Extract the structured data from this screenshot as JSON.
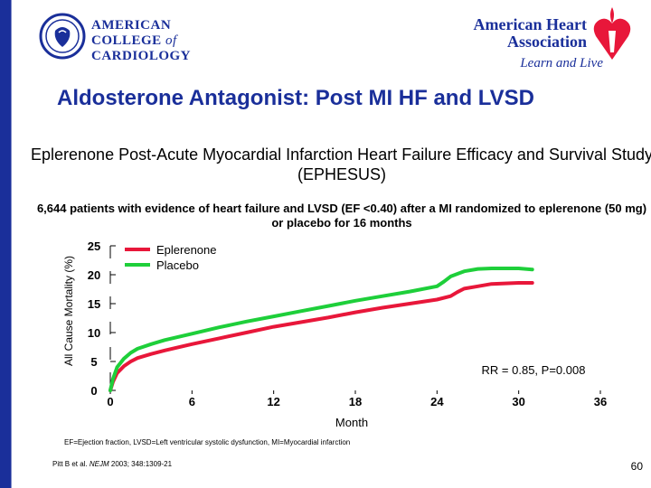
{
  "header": {
    "acc_logo_lines": [
      "AMERICAN",
      "COLLEGE",
      "of",
      "CARDIOLOGY"
    ],
    "aha_name_lines": [
      "American Heart",
      "Association"
    ],
    "aha_tagline": "Learn and Live"
  },
  "title": "Aldosterone Antagonist: Post MI HF and LVSD",
  "subtitle": "Eplerenone Post-Acute Myocardial Infarction Heart Failure Efficacy and Survival Study (EPHESUS)",
  "note": "6,644 patients with evidence of heart failure and LVSD (EF <0.40) after a MI randomized to eplerenone (50 mg) or placebo for 16 months",
  "chart_data": {
    "type": "line",
    "xlabel": "Month",
    "ylabel": "All Cause Mortality (%)",
    "xlim": [
      0,
      36
    ],
    "ylim": [
      0,
      25
    ],
    "xticks": [
      0,
      6,
      12,
      18,
      24,
      30,
      36
    ],
    "yticks": [
      0,
      5,
      10,
      15,
      20,
      25
    ],
    "legend_position": "top-left",
    "annotation": "RR = 0.85, P=0.008",
    "series": [
      {
        "name": "Eplerenone",
        "color": "#e8173a",
        "x": [
          0,
          0.2,
          0.5,
          1,
          1.5,
          2,
          3,
          4,
          6,
          8,
          10,
          12,
          14,
          16,
          18,
          20,
          22,
          24,
          25,
          25.5,
          26,
          27,
          28,
          30,
          31
        ],
        "y": [
          0,
          1.5,
          3.0,
          4.2,
          5.0,
          5.6,
          6.3,
          6.9,
          8.0,
          9.0,
          10.0,
          11.0,
          11.8,
          12.6,
          13.5,
          14.3,
          15.0,
          15.7,
          16.3,
          17.0,
          17.6,
          18.0,
          18.4,
          18.6,
          18.6
        ]
      },
      {
        "name": "Placebo",
        "color": "#1ecf3a",
        "x": [
          0,
          0.2,
          0.5,
          1,
          1.5,
          2,
          3,
          4,
          6,
          8,
          10,
          12,
          14,
          16,
          18,
          20,
          22,
          24,
          24.5,
          25,
          26,
          27,
          28,
          30,
          31
        ],
        "y": [
          0,
          2.0,
          4.0,
          5.5,
          6.5,
          7.2,
          8.0,
          8.7,
          9.8,
          10.9,
          11.9,
          12.8,
          13.7,
          14.6,
          15.5,
          16.3,
          17.1,
          18.0,
          18.8,
          19.7,
          20.6,
          21.0,
          21.1,
          21.1,
          20.9
        ]
      }
    ]
  },
  "footnote": "EF=Ejection fraction, LVSD=Left ventricular systolic dysfunction, MI=Myocardial infarction",
  "reference": {
    "before": "Pitt B et al. ",
    "journal": "NEJM",
    "after": " 2003; 348:1309-21"
  },
  "page_number": "60"
}
